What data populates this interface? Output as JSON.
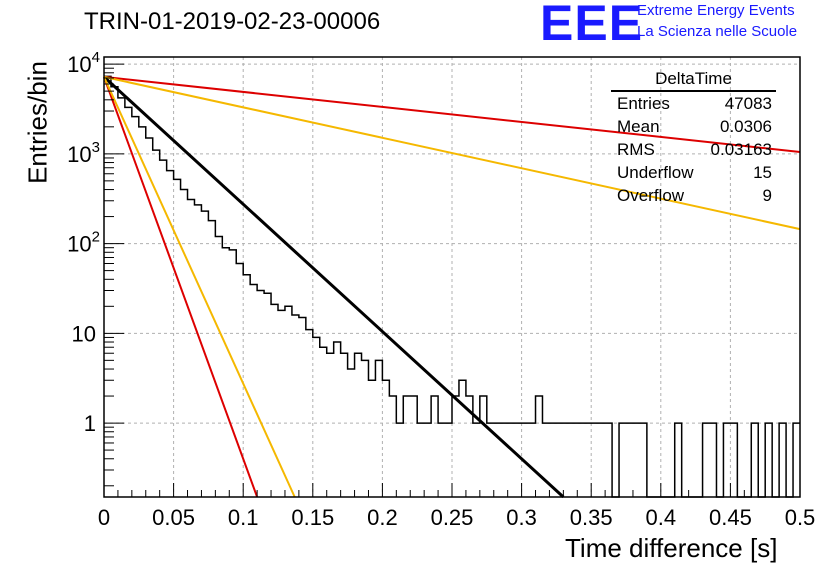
{
  "title": "TRIN-01-2019-02-23-00006",
  "logo": {
    "mark": "EEE",
    "line1": "Extreme Energy Events",
    "line2": "La Scienza nelle Scuole",
    "color": "#1a1aff"
  },
  "stats_box": {
    "name": "DeltaTime",
    "rows": [
      {
        "label": "Entries",
        "value": "47083"
      },
      {
        "label": "Mean",
        "value": "0.0306"
      },
      {
        "label": "RMS",
        "value": "0.03163"
      },
      {
        "label": "Underflow",
        "value": "15"
      },
      {
        "label": "Overflow",
        "value": "9"
      }
    ]
  },
  "chart_data": {
    "type": "line",
    "title": "TRIN-01-2019-02-23-00006",
    "xlabel": "Time difference [s]",
    "ylabel": "Entries/bin",
    "xlim": [
      0,
      0.5
    ],
    "ylim": [
      0.15,
      12000
    ],
    "yscale": "log",
    "grid": true,
    "x_ticks": [
      "0",
      "0.05",
      "0.1",
      "0.15",
      "0.2",
      "0.25",
      "0.3",
      "0.35",
      "0.4",
      "0.45",
      "0.5"
    ],
    "y_ticks": [
      {
        "value": 10000,
        "base": "10",
        "exp": "4"
      },
      {
        "value": 1000,
        "base": "10",
        "exp": "3"
      },
      {
        "value": 100,
        "base": "10",
        "exp": "2"
      },
      {
        "value": 10,
        "base": "10",
        "exp": ""
      },
      {
        "value": 1,
        "base": "1",
        "exp": ""
      }
    ],
    "histogram": {
      "name": "DeltaTime",
      "color": "#000000",
      "bin_width": 0.005,
      "bin_edges": [
        0,
        0.5
      ],
      "counts": [
        7300,
        5600,
        4200,
        3300,
        2600,
        2000,
        1500,
        1100,
        850,
        650,
        520,
        400,
        310,
        270,
        230,
        180,
        120,
        90,
        85,
        60,
        45,
        35,
        30,
        28,
        21,
        18,
        20,
        16,
        15,
        11,
        9,
        7,
        6,
        8,
        6,
        4,
        6,
        5,
        3,
        5,
        3,
        2,
        1,
        2,
        2,
        1,
        1,
        2,
        1,
        1,
        2,
        3,
        2,
        1,
        2,
        1,
        1,
        1,
        1,
        1,
        1,
        1,
        2,
        1,
        1,
        1,
        1,
        1,
        1,
        1,
        1,
        1,
        1,
        0,
        1,
        1,
        1,
        1,
        0,
        0,
        0,
        0,
        1,
        0,
        0,
        0,
        1,
        1,
        0,
        1,
        1,
        0,
        0,
        1,
        0,
        1,
        0,
        1,
        0,
        1
      ]
    },
    "series": [
      {
        "color": "#000000",
        "x": [
          0,
          0.33
        ],
        "y": [
          7200,
          0.15
        ],
        "width": 3
      },
      {
        "color": "#dd0000",
        "x": [
          0,
          0.5
        ],
        "y": [
          7200,
          1050
        ],
        "width": 2
      },
      {
        "color": "#f5b800",
        "x": [
          0,
          0.5
        ],
        "y": [
          7200,
          145
        ],
        "width": 2
      },
      {
        "color": "#dd0000",
        "x": [
          0,
          0.11
        ],
        "y": [
          7200,
          0.15
        ],
        "width": 2
      },
      {
        "color": "#f5b800",
        "x": [
          0,
          0.137
        ],
        "y": [
          7200,
          0.15
        ],
        "width": 2
      }
    ]
  }
}
